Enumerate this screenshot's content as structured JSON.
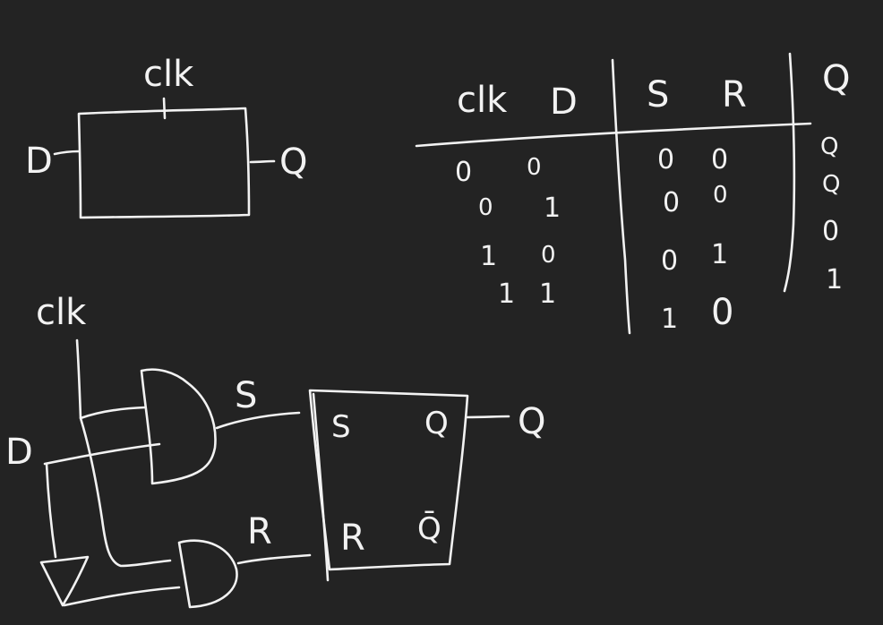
{
  "block": {
    "clk": "clk",
    "d": "D",
    "q": "Q"
  },
  "circuit": {
    "clk": "clk",
    "d": "D",
    "s_wire": "S",
    "r_wire": "R",
    "latch_s": "S",
    "latch_r": "R",
    "latch_q": "Q",
    "latch_qbar": "Q̄",
    "out_q": "Q"
  },
  "truth_table": {
    "headers": [
      "clk",
      "D",
      "S",
      "R",
      "Q"
    ],
    "rows": [
      [
        "0",
        "0",
        "0",
        "0",
        "Q"
      ],
      [
        "0",
        "1",
        "0",
        "0",
        "Q"
      ],
      [
        "1",
        "0",
        "0",
        "1",
        "0"
      ],
      [
        "1",
        "1",
        "1",
        "0",
        "1"
      ]
    ]
  },
  "colors": {
    "background": "#232323",
    "ink": "#f2f2f2"
  }
}
